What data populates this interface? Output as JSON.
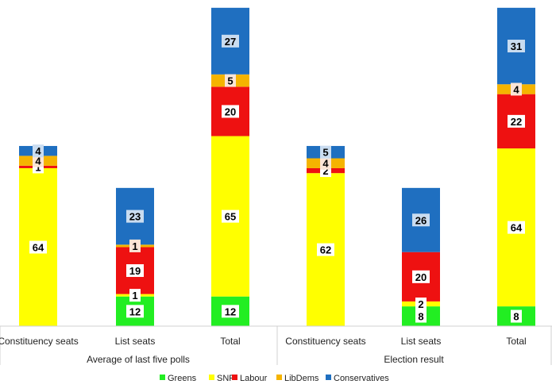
{
  "chart_data": {
    "type": "bar",
    "stacked": true,
    "groups": [
      {
        "label": "Average of last five polls",
        "categories": [
          "Constituency seats",
          "List seats",
          "Total"
        ]
      },
      {
        "label": "Election result",
        "categories": [
          "Constituency seats",
          "List seats",
          "Total"
        ]
      }
    ],
    "categories": [
      "Constituency seats",
      "List seats",
      "Total",
      "Constituency seats",
      "List seats",
      "Total"
    ],
    "series": [
      {
        "name": "Greens",
        "color": "#22ee22",
        "values": [
          0,
          12,
          12,
          0,
          8,
          8
        ]
      },
      {
        "name": "SNP",
        "color": "#ffff00",
        "values": [
          64,
          1,
          65,
          62,
          2,
          64
        ]
      },
      {
        "name": "Labour",
        "color": "#ee1111",
        "values": [
          1,
          19,
          20,
          2,
          20,
          22
        ]
      },
      {
        "name": "LibDems",
        "color": "#f5b400",
        "values": [
          4,
          1,
          5,
          4,
          0,
          4
        ]
      },
      {
        "name": "Conservatives",
        "color": "#1f6fc0",
        "values": [
          4,
          23,
          27,
          5,
          26,
          31
        ]
      }
    ],
    "legend": "bottom",
    "grid": false
  }
}
